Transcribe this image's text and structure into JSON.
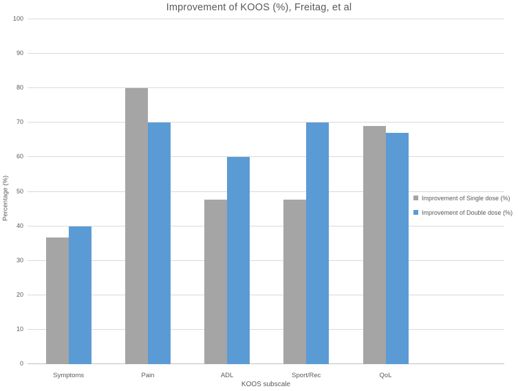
{
  "chart_data": {
    "type": "bar",
    "title": "Improvement of KOOS (%), Freitag, et al",
    "xlabel": "KOOS subscale",
    "ylabel": "Percentage (%)",
    "categories": [
      "Symptoms",
      "Pain",
      "ADL",
      "Sport/Rec",
      "QoL"
    ],
    "series": [
      {
        "name": "Improvement of Single dose (%)",
        "color": "#a5a5a5",
        "values": [
          36.7,
          80,
          47.7,
          47.7,
          69
        ]
      },
      {
        "name": "Improvement of Double dose (%)",
        "color": "#5b9bd5",
        "values": [
          40,
          70,
          60,
          70,
          67
        ]
      }
    ],
    "ylim": [
      0,
      100
    ],
    "ytick_step": 10,
    "yticks": [
      0,
      10,
      20,
      30,
      40,
      50,
      60,
      70,
      80,
      90,
      100
    ],
    "grid": true,
    "legend_position": "right",
    "colors": {
      "text": "#595959",
      "gridline": "#d9d9d9",
      "axis_line": "#bfbfbf",
      "background": "#ffffff"
    }
  }
}
